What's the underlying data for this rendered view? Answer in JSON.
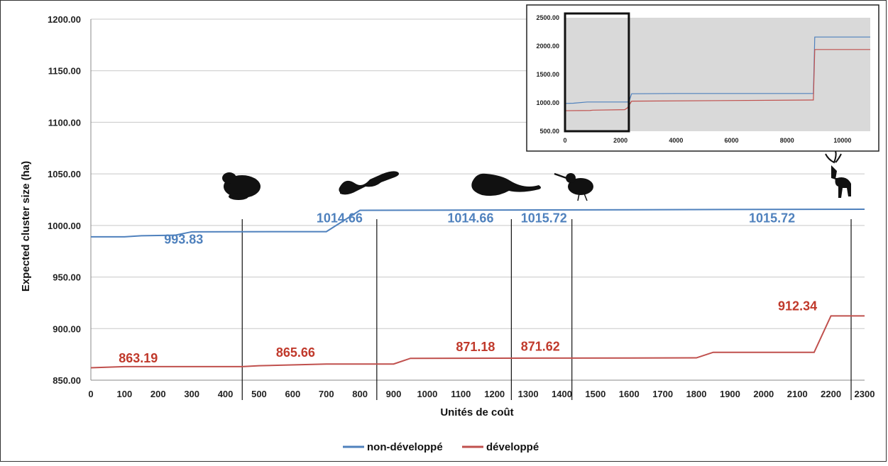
{
  "chart_data": [
    {
      "type": "line",
      "xlabel": "Unités de coût",
      "ylabel": "Expected cluster size (ha)",
      "xlim": [
        0,
        2300
      ],
      "ylim": [
        850,
        1200
      ],
      "x_ticks": [
        0,
        100,
        200,
        300,
        400,
        500,
        600,
        700,
        800,
        900,
        1000,
        1100,
        1200,
        1300,
        1400,
        1500,
        1600,
        1700,
        1800,
        1900,
        2000,
        2100,
        2200,
        2300
      ],
      "y_ticks": [
        850,
        900,
        950,
        1000,
        1050,
        1100,
        1150,
        1200
      ],
      "x_tick_labels": [
        "0",
        "100",
        "200",
        "300",
        "400",
        "500",
        "600",
        "700",
        "800",
        "900",
        "1000",
        "1100",
        "1200",
        "1300",
        "1400",
        "1500",
        "1600",
        "1700",
        "1800",
        "1900",
        "2000",
        "2100",
        "2200",
        "2300"
      ],
      "y_tick_labels": [
        "850.00",
        "900.00",
        "950.00",
        "1000.00",
        "1050.00",
        "1100.00",
        "1150.00",
        "1200.00"
      ],
      "grid": true,
      "legend_position": "bottom",
      "series": [
        {
          "name": "non-développé",
          "color": "#4f81bd",
          "x": [
            0,
            100,
            150,
            250,
            300,
            700,
            800,
            2300
          ],
          "y": [
            989,
            989,
            990,
            990.5,
            993.83,
            994,
            1014.66,
            1015.72
          ]
        },
        {
          "name": "développé",
          "color": "#c0504d",
          "x": [
            0,
            100,
            300,
            450,
            500,
            700,
            900,
            950,
            1800,
            1850,
            2150,
            2200,
            2300
          ],
          "y": [
            862,
            863.19,
            863.19,
            863.19,
            864,
            865.66,
            865.66,
            871.18,
            871.62,
            877,
            877,
            912.34,
            912.34
          ]
        }
      ],
      "annotations": [
        {
          "label": "993.83",
          "series": "non-développé",
          "x": 450
        },
        {
          "label": "1014.66",
          "series": "non-développé",
          "x": 850
        },
        {
          "label": "1014.66",
          "series": "non-développé",
          "x": 1250
        },
        {
          "label": "1015.72",
          "series": "non-développé",
          "x": 1430
        },
        {
          "label": "1015.72",
          "series": "non-développé",
          "x": 2260
        },
        {
          "label": "863.19",
          "series": "développé",
          "x": 450
        },
        {
          "label": "865.66",
          "series": "développé",
          "x": 850
        },
        {
          "label": "871.18",
          "series": "développé",
          "x": 1250
        },
        {
          "label": "871.62",
          "series": "développé",
          "x": 1430
        },
        {
          "label": "912.34",
          "series": "développé",
          "x": 2260
        }
      ],
      "marker_lines_x": [
        450,
        850,
        1250,
        1430,
        2260
      ],
      "species_icons": [
        "frog-icon",
        "salamander-icon",
        "mink-icon",
        "woodcock-icon",
        "deer-icon"
      ]
    },
    {
      "type": "line",
      "inset": true,
      "xlim": [
        0,
        11000
      ],
      "ylim": [
        500,
        2500
      ],
      "x_tick_labels": [
        "0",
        "2000",
        "4000",
        "6000",
        "8000",
        "10000"
      ],
      "x_ticks": [
        0,
        2000,
        4000,
        6000,
        8000,
        10000
      ],
      "y_tick_labels": [
        "500.00",
        "1000.00",
        "1500.00",
        "2000.00",
        "2500.00"
      ],
      "y_ticks": [
        500,
        1000,
        1500,
        2000,
        2500
      ],
      "highlight_range_x": [
        0,
        2300
      ],
      "series": [
        {
          "name": "non-développé",
          "color": "#4f81bd",
          "x": [
            0,
            300,
            800,
            2300,
            2400,
            4000,
            8950,
            9000,
            11000
          ],
          "y": [
            990,
            994,
            1015,
            1016,
            1160,
            1165,
            1165,
            2160,
            2160
          ]
        },
        {
          "name": "développé",
          "color": "#c0504d",
          "x": [
            0,
            900,
            1000,
            2150,
            2250,
            2400,
            8950,
            9000,
            11000
          ],
          "y": [
            862,
            866,
            871,
            880,
            912,
            1030,
            1050,
            1940,
            1940
          ]
        }
      ]
    }
  ]
}
